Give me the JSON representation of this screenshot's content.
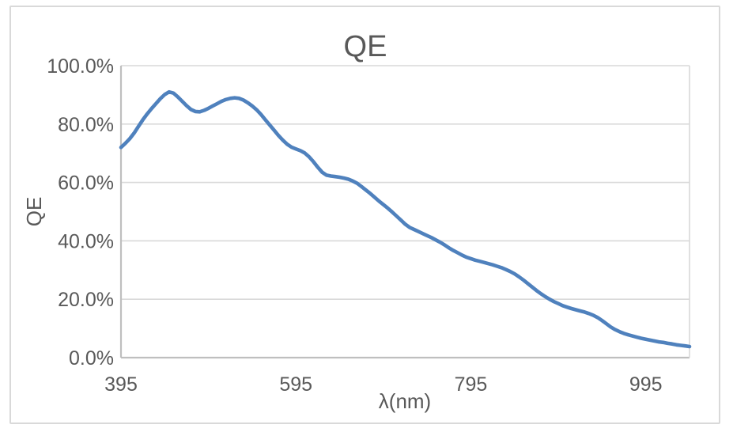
{
  "chart_data": {
    "type": "line",
    "title": "QE",
    "xlabel": "λ(nm)",
    "ylabel": "QE",
    "x_range": [
      395,
      1045
    ],
    "x_ticks": [
      395,
      595,
      795,
      995
    ],
    "x_tick_labels": [
      "395",
      "595",
      "795",
      "995"
    ],
    "ylim": [
      0,
      100
    ],
    "y_tick_values": [
      0,
      20,
      40,
      60,
      80,
      100
    ],
    "y_tick_labels": [
      "0.0%",
      "20.0%",
      "40.0%",
      "60.0%",
      "80.0%",
      "100.0%"
    ],
    "grid": "horizontal",
    "legend_position": "none",
    "colors": {
      "series_line": "#4f81bd",
      "text": "#595959",
      "gridline": "#d9d9d9",
      "axis_line": "#bfbfbf",
      "plot_right_border": "#d9d9d9",
      "frame_border": "#d9d9d9",
      "background": "#ffffff"
    },
    "series": [
      {
        "name": "QE",
        "points": [
          [
            395,
            72.0
          ],
          [
            400,
            73.4
          ],
          [
            405,
            75.0
          ],
          [
            410,
            76.9
          ],
          [
            415,
            79.2
          ],
          [
            420,
            81.5
          ],
          [
            425,
            83.5
          ],
          [
            430,
            85.3
          ],
          [
            435,
            87.0
          ],
          [
            440,
            88.7
          ],
          [
            445,
            90.1
          ],
          [
            450,
            91.0
          ],
          [
            455,
            90.6
          ],
          [
            460,
            89.3
          ],
          [
            465,
            87.8
          ],
          [
            470,
            86.3
          ],
          [
            475,
            85.0
          ],
          [
            480,
            84.3
          ],
          [
            485,
            84.2
          ],
          [
            490,
            84.7
          ],
          [
            495,
            85.4
          ],
          [
            500,
            86.2
          ],
          [
            505,
            87.0
          ],
          [
            510,
            87.8
          ],
          [
            515,
            88.4
          ],
          [
            520,
            88.8
          ],
          [
            525,
            89.0
          ],
          [
            530,
            88.8
          ],
          [
            535,
            88.2
          ],
          [
            540,
            87.3
          ],
          [
            545,
            86.2
          ],
          [
            550,
            84.9
          ],
          [
            555,
            83.3
          ],
          [
            560,
            81.5
          ],
          [
            565,
            79.7
          ],
          [
            570,
            77.9
          ],
          [
            575,
            76.1
          ],
          [
            580,
            74.5
          ],
          [
            585,
            73.1
          ],
          [
            590,
            72.1
          ],
          [
            595,
            71.5
          ],
          [
            600,
            70.9
          ],
          [
            605,
            70.1
          ],
          [
            610,
            68.8
          ],
          [
            615,
            67.1
          ],
          [
            620,
            65.2
          ],
          [
            625,
            63.5
          ],
          [
            630,
            62.5
          ],
          [
            635,
            62.2
          ],
          [
            640,
            62.0
          ],
          [
            645,
            61.8
          ],
          [
            650,
            61.5
          ],
          [
            655,
            61.1
          ],
          [
            660,
            60.5
          ],
          [
            665,
            59.7
          ],
          [
            670,
            58.6
          ],
          [
            675,
            57.4
          ],
          [
            680,
            56.2
          ],
          [
            685,
            54.9
          ],
          [
            690,
            53.6
          ],
          [
            695,
            52.4
          ],
          [
            700,
            51.2
          ],
          [
            705,
            49.9
          ],
          [
            710,
            48.5
          ],
          [
            715,
            47.1
          ],
          [
            720,
            45.7
          ],
          [
            725,
            44.6
          ],
          [
            730,
            43.9
          ],
          [
            735,
            43.2
          ],
          [
            740,
            42.5
          ],
          [
            745,
            41.8
          ],
          [
            750,
            41.1
          ],
          [
            755,
            40.3
          ],
          [
            760,
            39.5
          ],
          [
            765,
            38.6
          ],
          [
            770,
            37.6
          ],
          [
            775,
            36.7
          ],
          [
            780,
            35.9
          ],
          [
            785,
            35.1
          ],
          [
            790,
            34.4
          ],
          [
            795,
            33.9
          ],
          [
            800,
            33.4
          ],
          [
            805,
            33.0
          ],
          [
            810,
            32.6
          ],
          [
            815,
            32.2
          ],
          [
            820,
            31.8
          ],
          [
            825,
            31.3
          ],
          [
            830,
            30.8
          ],
          [
            835,
            30.2
          ],
          [
            840,
            29.5
          ],
          [
            845,
            28.7
          ],
          [
            850,
            27.7
          ],
          [
            855,
            26.6
          ],
          [
            860,
            25.4
          ],
          [
            865,
            24.2
          ],
          [
            870,
            23.0
          ],
          [
            875,
            21.9
          ],
          [
            880,
            20.9
          ],
          [
            885,
            20.0
          ],
          [
            890,
            19.2
          ],
          [
            895,
            18.5
          ],
          [
            900,
            17.8
          ],
          [
            905,
            17.3
          ],
          [
            910,
            16.8
          ],
          [
            915,
            16.4
          ],
          [
            920,
            16.0
          ],
          [
            925,
            15.6
          ],
          [
            930,
            15.1
          ],
          [
            935,
            14.5
          ],
          [
            940,
            13.7
          ],
          [
            945,
            12.7
          ],
          [
            950,
            11.6
          ],
          [
            955,
            10.5
          ],
          [
            960,
            9.6
          ],
          [
            965,
            8.9
          ],
          [
            970,
            8.3
          ],
          [
            975,
            7.8
          ],
          [
            980,
            7.4
          ],
          [
            985,
            7.0
          ],
          [
            990,
            6.6
          ],
          [
            995,
            6.3
          ],
          [
            1000,
            6.0
          ],
          [
            1005,
            5.7
          ],
          [
            1010,
            5.4
          ],
          [
            1015,
            5.2
          ],
          [
            1020,
            4.9
          ],
          [
            1025,
            4.7
          ],
          [
            1030,
            4.4
          ],
          [
            1035,
            4.2
          ],
          [
            1040,
            4.0
          ],
          [
            1045,
            3.8
          ]
        ]
      }
    ]
  }
}
